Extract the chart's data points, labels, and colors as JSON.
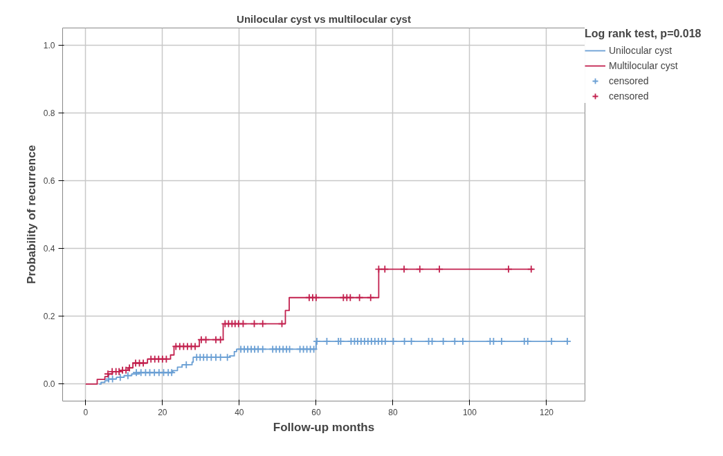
{
  "chart_data": {
    "type": "step",
    "title": "Unilocular cyst vs multilocular cyst",
    "xlabel": "Follow-up months",
    "ylabel": "Probability of recurrence",
    "legend_title": "Log rank test, p=0.018",
    "xlim": [
      -6,
      130
    ],
    "ylim": [
      -0.05,
      1.05
    ],
    "xticks": [
      0,
      20,
      40,
      60,
      80,
      100,
      120
    ],
    "yticks": [
      {
        "value": 0,
        "label": "0.0"
      },
      {
        "value": 0.2,
        "label": "0.2"
      },
      {
        "value": 0.4,
        "label": "0.4"
      },
      {
        "value": 0.6,
        "label": "0.6"
      },
      {
        "value": 0.8,
        "label": "0.8"
      },
      {
        "value": 1.0,
        "label": "1.0"
      }
    ],
    "grid": true,
    "legend": "right",
    "line_style": "solid",
    "series": [
      {
        "name": "Unilocular cyst",
        "type": "step",
        "color": "#6a9fd4",
        "x": [
          3.5,
          4,
          5,
          6,
          8,
          10,
          12,
          14,
          22.7,
          23.9,
          25.1,
          27.7,
          28,
          37.5,
          38.7,
          39.3,
          60,
          125.4
        ],
        "values": [
          0,
          0.005,
          0.01,
          0.015,
          0.02,
          0.025,
          0.03,
          0.034,
          0.04,
          0.05,
          0.057,
          0.065,
          0.079,
          0.083,
          0.096,
          0.103,
          0.126,
          0.126
        ]
      },
      {
        "name": "Multilocular cyst",
        "type": "step",
        "color": "#c2204e",
        "x": [
          0,
          3,
          5,
          6,
          7,
          9,
          11,
          12.3,
          16.1,
          22.1,
          23,
          29.6,
          35.8,
          52,
          53,
          76.3,
          116.5
        ],
        "values": [
          0,
          0.014,
          0.022,
          0.03,
          0.037,
          0.041,
          0.048,
          0.062,
          0.074,
          0.086,
          0.111,
          0.131,
          0.178,
          0.217,
          0.255,
          0.339,
          0.339
        ]
      },
      {
        "name": "censored",
        "type": "scatter",
        "marker": "cross",
        "color": "#6a9fd4",
        "x": [
          6,
          7,
          9,
          11,
          13.2,
          14.4,
          15.6,
          16.7,
          17.9,
          19.1,
          20.3,
          21.5,
          22.4,
          26.2,
          28.9,
          29.8,
          30.7,
          31.6,
          32.7,
          33.9,
          35.1,
          36.9,
          40.4,
          41.3,
          42.2,
          43.1,
          44,
          44.9,
          46.1,
          48.7,
          49.6,
          50.5,
          51.4,
          52.3,
          53.1,
          55.8,
          56.7,
          57.6,
          58.5,
          59.4,
          60.2,
          62.8,
          65.8,
          66.4,
          69.1,
          70,
          70.8,
          71.7,
          72.6,
          73.5,
          74.4,
          75.3,
          76.2,
          77.1,
          78,
          80.1,
          83,
          84.8,
          89.3,
          90.2,
          93.1,
          96.1,
          98.2,
          105.3,
          106.2,
          108.3,
          114.2,
          115.1,
          121.3,
          125.4
        ],
        "values": [
          0.015,
          0.015,
          0.02,
          0.025,
          0.034,
          0.034,
          0.034,
          0.034,
          0.034,
          0.034,
          0.034,
          0.034,
          0.034,
          0.057,
          0.079,
          0.079,
          0.079,
          0.079,
          0.079,
          0.079,
          0.079,
          0.079,
          0.103,
          0.103,
          0.103,
          0.103,
          0.103,
          0.103,
          0.103,
          0.103,
          0.103,
          0.103,
          0.103,
          0.103,
          0.103,
          0.103,
          0.103,
          0.103,
          0.103,
          0.103,
          0.126,
          0.126,
          0.126,
          0.126,
          0.126,
          0.126,
          0.126,
          0.126,
          0.126,
          0.126,
          0.126,
          0.126,
          0.126,
          0.126,
          0.126,
          0.126,
          0.126,
          0.126,
          0.126,
          0.126,
          0.126,
          0.126,
          0.126,
          0.126,
          0.126,
          0.126,
          0.126,
          0.126,
          0.126,
          0.126
        ]
      },
      {
        "name": "censored",
        "type": "scatter",
        "marker": "cross",
        "color": "#c2204e",
        "x": [
          5.8,
          6.9,
          7.9,
          8.7,
          9.6,
          10.5,
          11.4,
          13,
          14,
          15,
          17,
          18,
          19,
          20,
          21,
          23.5,
          24.5,
          25.5,
          26.5,
          27.5,
          28.5,
          30.1,
          31.3,
          33.9,
          35.1,
          36.3,
          37.2,
          38.1,
          38.9,
          39.8,
          41,
          43.9,
          46.1,
          51.1,
          58.2,
          59.1,
          60,
          67.1,
          68,
          68.9,
          71.3,
          74.2,
          76.3,
          77.9,
          82.9,
          87,
          92.1,
          110.1,
          116
        ],
        "values": [
          0.03,
          0.037,
          0.037,
          0.037,
          0.041,
          0.041,
          0.048,
          0.062,
          0.062,
          0.062,
          0.074,
          0.074,
          0.074,
          0.074,
          0.074,
          0.111,
          0.111,
          0.111,
          0.111,
          0.111,
          0.111,
          0.131,
          0.131,
          0.131,
          0.131,
          0.178,
          0.178,
          0.178,
          0.178,
          0.178,
          0.178,
          0.178,
          0.178,
          0.178,
          0.255,
          0.255,
          0.255,
          0.255,
          0.255,
          0.255,
          0.255,
          0.255,
          0.339,
          0.339,
          0.339,
          0.339,
          0.339,
          0.339,
          0.339
        ]
      }
    ]
  }
}
